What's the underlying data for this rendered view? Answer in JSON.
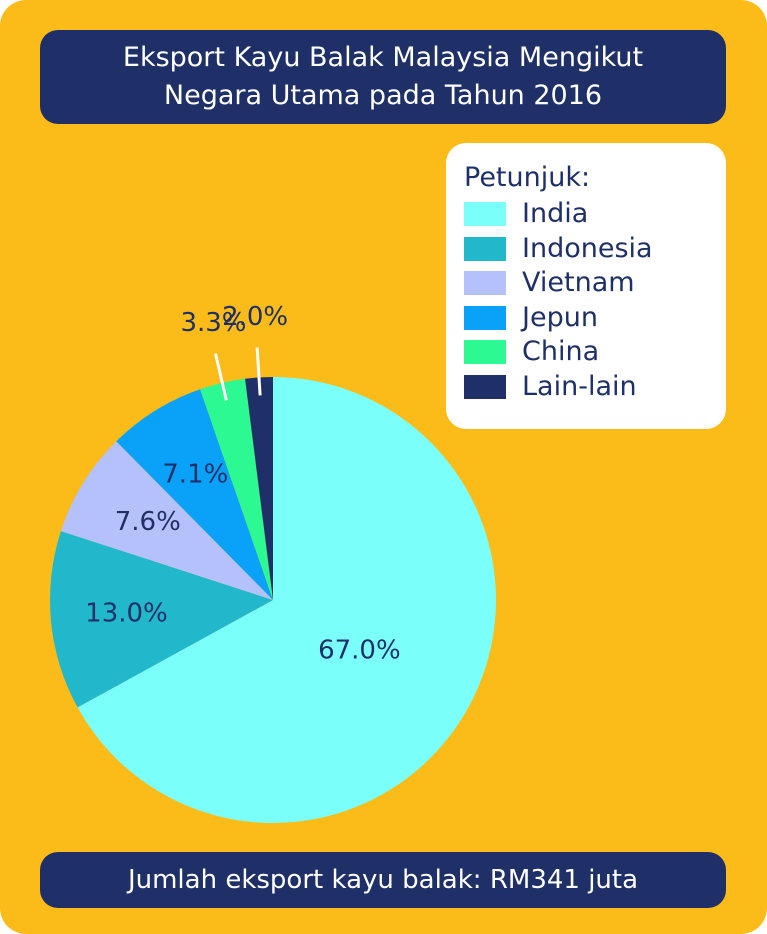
{
  "title": {
    "line1": "Eksport Kayu Balak Malaysia Mengikut",
    "line2": "Negara Utama pada Tahun 2016"
  },
  "legend": {
    "title": "Petunjuk:"
  },
  "footer": {
    "text": "Jumlah eksport kayu balak: RM341 juta"
  },
  "colors": {
    "background": "#fbbb18",
    "navy": "#1f3068",
    "label_text": "#1f3068"
  },
  "chart_data": {
    "type": "pie",
    "slices": [
      {
        "label": "India",
        "value": 67.0,
        "value_label": "67.0%",
        "color": "#7bfffb"
      },
      {
        "label": "Indonesia",
        "value": 13.0,
        "value_label": "13.0%",
        "color": "#22b8cc"
      },
      {
        "label": "Vietnam",
        "value": 7.6,
        "value_label": "7.6%",
        "color": "#b5c1fa"
      },
      {
        "label": "Jepun",
        "value": 7.1,
        "value_label": "7.1%",
        "color": "#0aa2f8"
      },
      {
        "label": "China",
        "value": 3.3,
        "value_label": "3.3%",
        "color": "#2df993"
      },
      {
        "label": "Lain-lain",
        "value": 2.0,
        "value_label": "2.0%",
        "color": "#1f3068"
      }
    ],
    "start": "12 o'clock",
    "direction": "clockwise",
    "legend_placement": "top-right"
  }
}
